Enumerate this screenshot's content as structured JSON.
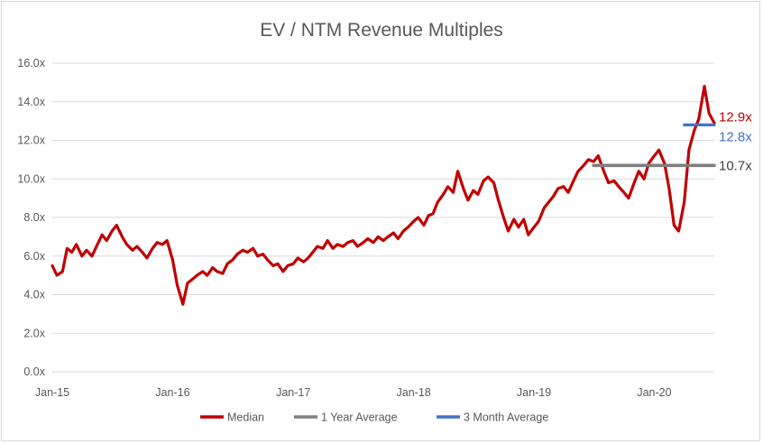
{
  "chart_data": {
    "type": "line",
    "title": "EV / NTM Revenue Multiples",
    "xlabel": "",
    "ylabel": "",
    "ylim": [
      0,
      16
    ],
    "y_ticks": [
      "0.0x",
      "2.0x",
      "4.0x",
      "6.0x",
      "8.0x",
      "10.0x",
      "12.0x",
      "14.0x",
      "16.0x"
    ],
    "x_ticks": [
      "Jan-15",
      "Jan-16",
      "Jan-17",
      "Jan-18",
      "Jan-19",
      "Jan-20"
    ],
    "grid": "horizontal",
    "legend_position": "bottom",
    "x_start": "2015-01",
    "x_end": "2020-07",
    "series": [
      {
        "name": "Median",
        "color": "#c00000",
        "points": [
          [
            "2015-01-01",
            5.5
          ],
          [
            "2015-01-15",
            5.0
          ],
          [
            "2015-02-01",
            5.2
          ],
          [
            "2015-02-15",
            6.4
          ],
          [
            "2015-03-01",
            6.2
          ],
          [
            "2015-03-15",
            6.6
          ],
          [
            "2015-04-01",
            6.0
          ],
          [
            "2015-04-15",
            6.3
          ],
          [
            "2015-05-01",
            6.0
          ],
          [
            "2015-05-15",
            6.5
          ],
          [
            "2015-06-01",
            7.1
          ],
          [
            "2015-06-15",
            6.8
          ],
          [
            "2015-07-01",
            7.3
          ],
          [
            "2015-07-15",
            7.6
          ],
          [
            "2015-08-01",
            7.0
          ],
          [
            "2015-08-15",
            6.6
          ],
          [
            "2015-09-01",
            6.3
          ],
          [
            "2015-09-15",
            6.5
          ],
          [
            "2015-10-01",
            6.2
          ],
          [
            "2015-10-15",
            5.9
          ],
          [
            "2015-11-01",
            6.4
          ],
          [
            "2015-11-15",
            6.7
          ],
          [
            "2015-12-01",
            6.6
          ],
          [
            "2015-12-15",
            6.8
          ],
          [
            "2016-01-01",
            5.8
          ],
          [
            "2016-01-15",
            4.5
          ],
          [
            "2016-02-01",
            3.5
          ],
          [
            "2016-02-15",
            4.6
          ],
          [
            "2016-03-01",
            4.8
          ],
          [
            "2016-03-15",
            5.0
          ],
          [
            "2016-04-01",
            5.2
          ],
          [
            "2016-04-15",
            5.0
          ],
          [
            "2016-05-01",
            5.4
          ],
          [
            "2016-05-15",
            5.2
          ],
          [
            "2016-06-01",
            5.1
          ],
          [
            "2016-06-15",
            5.6
          ],
          [
            "2016-07-01",
            5.8
          ],
          [
            "2016-07-15",
            6.1
          ],
          [
            "2016-08-01",
            6.3
          ],
          [
            "2016-08-15",
            6.2
          ],
          [
            "2016-09-01",
            6.4
          ],
          [
            "2016-09-15",
            6.0
          ],
          [
            "2016-10-01",
            6.1
          ],
          [
            "2016-10-15",
            5.8
          ],
          [
            "2016-11-01",
            5.5
          ],
          [
            "2016-11-15",
            5.6
          ],
          [
            "2016-12-01",
            5.2
          ],
          [
            "2016-12-15",
            5.5
          ],
          [
            "2017-01-01",
            5.6
          ],
          [
            "2017-01-15",
            5.9
          ],
          [
            "2017-02-01",
            5.7
          ],
          [
            "2017-02-15",
            5.9
          ],
          [
            "2017-03-01",
            6.2
          ],
          [
            "2017-03-15",
            6.5
          ],
          [
            "2017-04-01",
            6.4
          ],
          [
            "2017-04-15",
            6.8
          ],
          [
            "2017-05-01",
            6.4
          ],
          [
            "2017-05-15",
            6.6
          ],
          [
            "2017-06-01",
            6.5
          ],
          [
            "2017-06-15",
            6.7
          ],
          [
            "2017-07-01",
            6.8
          ],
          [
            "2017-07-15",
            6.5
          ],
          [
            "2017-08-01",
            6.7
          ],
          [
            "2017-08-15",
            6.9
          ],
          [
            "2017-09-01",
            6.7
          ],
          [
            "2017-09-15",
            7.0
          ],
          [
            "2017-10-01",
            6.8
          ],
          [
            "2017-10-15",
            7.0
          ],
          [
            "2017-11-01",
            7.2
          ],
          [
            "2017-11-15",
            6.9
          ],
          [
            "2017-12-01",
            7.3
          ],
          [
            "2017-12-15",
            7.5
          ],
          [
            "2018-01-01",
            7.8
          ],
          [
            "2018-01-15",
            8.0
          ],
          [
            "2018-02-01",
            7.6
          ],
          [
            "2018-02-15",
            8.1
          ],
          [
            "2018-03-01",
            8.2
          ],
          [
            "2018-03-15",
            8.8
          ],
          [
            "2018-04-01",
            9.2
          ],
          [
            "2018-04-15",
            9.6
          ],
          [
            "2018-05-01",
            9.3
          ],
          [
            "2018-05-15",
            10.4
          ],
          [
            "2018-06-01",
            9.5
          ],
          [
            "2018-06-15",
            8.9
          ],
          [
            "2018-07-01",
            9.4
          ],
          [
            "2018-07-15",
            9.2
          ],
          [
            "2018-08-01",
            9.9
          ],
          [
            "2018-08-15",
            10.1
          ],
          [
            "2018-09-01",
            9.8
          ],
          [
            "2018-09-15",
            8.9
          ],
          [
            "2018-10-01",
            8.0
          ],
          [
            "2018-10-15",
            7.3
          ],
          [
            "2018-11-01",
            7.9
          ],
          [
            "2018-11-15",
            7.5
          ],
          [
            "2018-12-01",
            7.9
          ],
          [
            "2018-12-15",
            7.1
          ],
          [
            "2019-01-01",
            7.5
          ],
          [
            "2019-01-15",
            7.8
          ],
          [
            "2019-02-01",
            8.5
          ],
          [
            "2019-02-15",
            8.8
          ],
          [
            "2019-03-01",
            9.1
          ],
          [
            "2019-03-15",
            9.5
          ],
          [
            "2019-04-01",
            9.6
          ],
          [
            "2019-04-15",
            9.3
          ],
          [
            "2019-05-01",
            9.9
          ],
          [
            "2019-05-15",
            10.4
          ],
          [
            "2019-06-01",
            10.7
          ],
          [
            "2019-06-15",
            11.0
          ],
          [
            "2019-07-01",
            10.9
          ],
          [
            "2019-07-15",
            11.2
          ],
          [
            "2019-08-01",
            10.4
          ],
          [
            "2019-08-15",
            9.8
          ],
          [
            "2019-09-01",
            9.9
          ],
          [
            "2019-09-15",
            9.6
          ],
          [
            "2019-10-01",
            9.3
          ],
          [
            "2019-10-15",
            9.0
          ],
          [
            "2019-11-01",
            9.8
          ],
          [
            "2019-11-15",
            10.4
          ],
          [
            "2019-12-01",
            10.0
          ],
          [
            "2019-12-15",
            10.8
          ],
          [
            "2020-01-01",
            11.2
          ],
          [
            "2020-01-15",
            11.5
          ],
          [
            "2020-02-01",
            10.8
          ],
          [
            "2020-02-15",
            9.5
          ],
          [
            "2020-03-01",
            7.6
          ],
          [
            "2020-03-15",
            7.3
          ],
          [
            "2020-04-01",
            8.8
          ],
          [
            "2020-04-15",
            11.5
          ],
          [
            "2020-05-01",
            12.5
          ],
          [
            "2020-05-15",
            13.1
          ],
          [
            "2020-06-01",
            14.8
          ],
          [
            "2020-06-15",
            13.4
          ],
          [
            "2020-07-01",
            12.9
          ]
        ]
      },
      {
        "name": "1 Year Average",
        "color": "#7f7f7f",
        "points": [
          [
            "2019-07-01",
            10.7
          ],
          [
            "2020-07-01",
            10.7
          ]
        ]
      },
      {
        "name": "3 Month Average",
        "color": "#4472c4",
        "points": [
          [
            "2020-04-01",
            12.8
          ],
          [
            "2020-07-01",
            12.8
          ]
        ]
      }
    ],
    "end_labels": [
      {
        "text": "12.9x",
        "series": "Median",
        "color": "#c00000"
      },
      {
        "text": "12.8x",
        "series": "3 Month Average",
        "color": "#4472c4"
      },
      {
        "text": "10.7x",
        "series": "1 Year Average",
        "color": "#404040"
      }
    ]
  }
}
